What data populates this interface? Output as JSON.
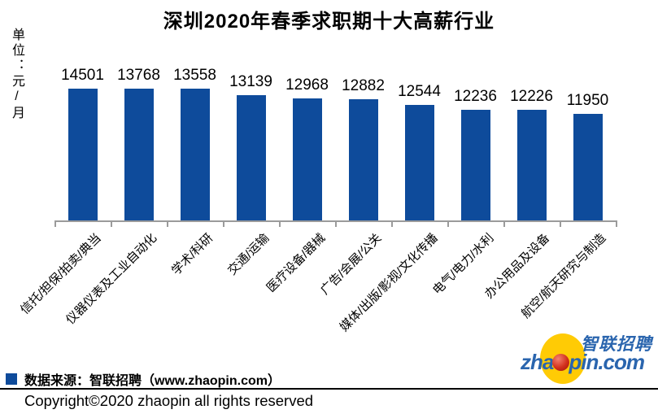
{
  "chart_data": {
    "type": "bar",
    "title": "深圳2020年春季求职期十大高薪行业",
    "ylabel": "单位：元/月",
    "xlabel": "",
    "categories": [
      "信托/担保/拍卖/典当",
      "仪器仪表及工业自动化",
      "学术/科研",
      "交通/运输",
      "医疗设备/器械",
      "广告/会展/公关",
      "媒体/出版/影视/文化传播",
      "电气/电力/水利",
      "办公用品及设备",
      "航空/航天研究与制造"
    ],
    "values": [
      14501,
      13768,
      13558,
      13139,
      12968,
      12882,
      12544,
      12236,
      12226,
      11950
    ],
    "data_labels": true,
    "grid": false,
    "ylim": [
      5000,
      15000
    ],
    "bar_color": "#0E4B9B",
    "axis_color": "#9B9B9B",
    "legend_position": "bottom-left"
  },
  "legend": {
    "marker_color": "#0E4B9B",
    "label": "数据来源：智联招聘（www.zhaopin.com）"
  },
  "footer": {
    "copyright": "Copyright©2020 zhaopin all rights reserved"
  },
  "logo": {
    "cn_text": "智联招聘",
    "domain_pre": "zha",
    "domain_post": "pin.com",
    "blue": "#2A65AE",
    "yellow": "#FFCB05",
    "red": "#C52A16"
  }
}
